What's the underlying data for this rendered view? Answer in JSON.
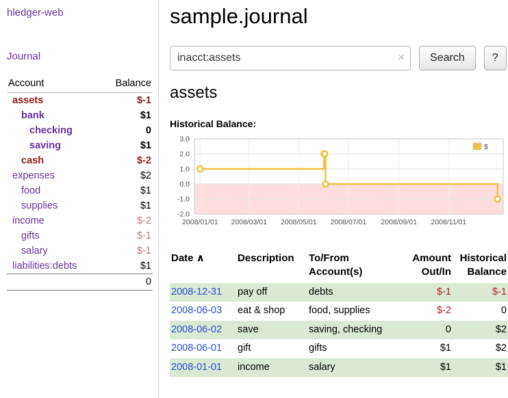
{
  "app": {
    "title": "hledger-web"
  },
  "colors": {
    "link_purple": "#663399",
    "date_link_blue": "#2b4fd0",
    "negative_strong_red": "#8e1b1b",
    "negative_light_red": "#c27878",
    "register_negative_red": "#b22222",
    "row_stripe_green": "#d9e9d3"
  },
  "sidebar": {
    "journal_link": "Journal",
    "table": {
      "account_header": "Account",
      "balance_header": "Balance",
      "accounts": [
        {
          "name": "assets",
          "balance": "$-1"
        },
        {
          "name": "bank",
          "balance": "$1"
        },
        {
          "name": "checking",
          "balance": "0"
        },
        {
          "name": "saving",
          "balance": "$1"
        },
        {
          "name": "cash",
          "balance": "$-2"
        },
        {
          "name": "expenses",
          "balance": "$2"
        },
        {
          "name": "food",
          "balance": "$1"
        },
        {
          "name": "supplies",
          "balance": "$1"
        },
        {
          "name": "income",
          "balance": "$-2"
        },
        {
          "name": "gifts",
          "balance": "$-1"
        },
        {
          "name": "salary",
          "balance": "$-1"
        },
        {
          "name": "liabilities:debts",
          "balance": "$1"
        }
      ],
      "total": "0"
    }
  },
  "header": {
    "title": "sample.journal"
  },
  "search": {
    "value": "inacct:assets",
    "clear_icon": "×",
    "button": "Search",
    "help_button": "?"
  },
  "account_page": {
    "title": "assets",
    "chart_label": "Historical Balance:"
  },
  "chart_data": {
    "type": "line",
    "style": "steps",
    "title": "Historical Balance:",
    "legend": {
      "label": "$",
      "position": "top-right"
    },
    "series": [
      {
        "name": "$",
        "color": "#edc240",
        "points": [
          {
            "date": "2008-01-01",
            "value": 1
          },
          {
            "date": "2008-06-01",
            "value": 2
          },
          {
            "date": "2008-06-02",
            "value": 2
          },
          {
            "date": "2008-06-03",
            "value": 0
          },
          {
            "date": "2008-12-31",
            "value": -1
          }
        ]
      }
    ],
    "x_ticks": [
      "2008/01/01",
      "2008/03/01",
      "2008/05/01",
      "2008/07/01",
      "2008/09/01",
      "2008/11/01"
    ],
    "y_ticks": [
      3.0,
      2.0,
      1.0,
      0.0,
      -1.0,
      -2.0
    ],
    "ylim": [
      -2,
      3
    ],
    "xlim": [
      "2007-12-25",
      "2009-01-07"
    ],
    "grid": true,
    "negative_region_color": "#ffdddd"
  },
  "register": {
    "headers": {
      "date": "Date",
      "sort_indicator": "∧",
      "description": "Description",
      "accounts": "To/From Account(s)",
      "amount": "Amount Out/In",
      "balance": "Historical Balance"
    },
    "rows": [
      {
        "date": "2008-12-31",
        "description": "pay off",
        "accounts": "debts",
        "amount": "$-1",
        "balance": "$-1"
      },
      {
        "date": "2008-06-03",
        "description": "eat & shop",
        "accounts": "food, supplies",
        "amount": "$-2",
        "balance": "0"
      },
      {
        "date": "2008-06-02",
        "description": "save",
        "accounts": "saving, checking",
        "amount": "0",
        "balance": "$2"
      },
      {
        "date": "2008-06-01",
        "description": "gift",
        "accounts": "gifts",
        "amount": "$1",
        "balance": "$2"
      },
      {
        "date": "2008-01-01",
        "description": "income",
        "accounts": "salary",
        "amount": "$1",
        "balance": "$1"
      }
    ]
  }
}
